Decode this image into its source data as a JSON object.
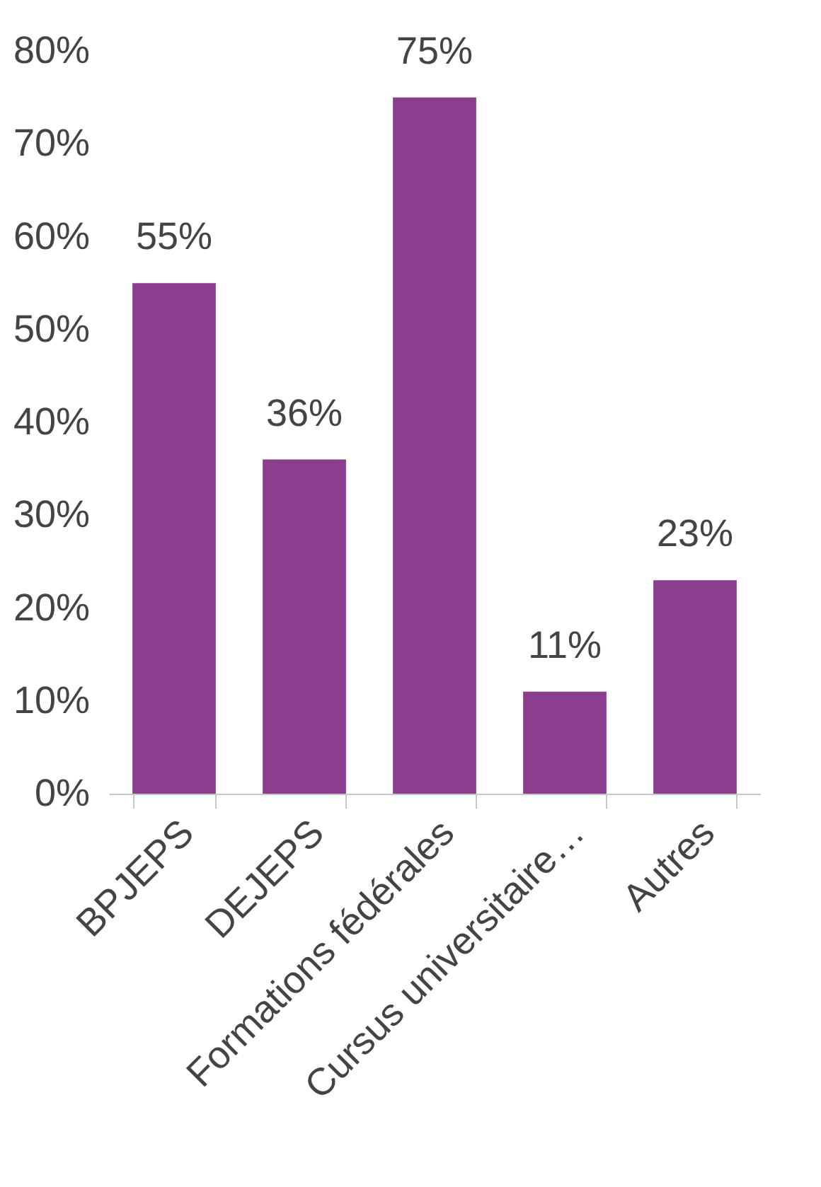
{
  "chart_data": {
    "type": "bar",
    "categories": [
      "BPJEPS",
      "DEJEPS",
      "Formations fédérales",
      "Cursus universitaire…",
      "Autres"
    ],
    "values": [
      55,
      36,
      75,
      11,
      23
    ],
    "value_labels": [
      "55%",
      "36%",
      "75%",
      "11%",
      "23%"
    ],
    "color": "#8b3d8e",
    "ylim": [
      0,
      80
    ],
    "yticks": [
      {
        "value": 0,
        "label": "0%"
      },
      {
        "value": 10,
        "label": "10%"
      },
      {
        "value": 20,
        "label": "20%"
      },
      {
        "value": 30,
        "label": "30%"
      },
      {
        "value": 40,
        "label": "40%"
      },
      {
        "value": 50,
        "label": "50%"
      },
      {
        "value": 60,
        "label": "60%"
      },
      {
        "value": 70,
        "label": "70%"
      },
      {
        "value": 80,
        "label": "80%"
      }
    ],
    "grid": false
  }
}
